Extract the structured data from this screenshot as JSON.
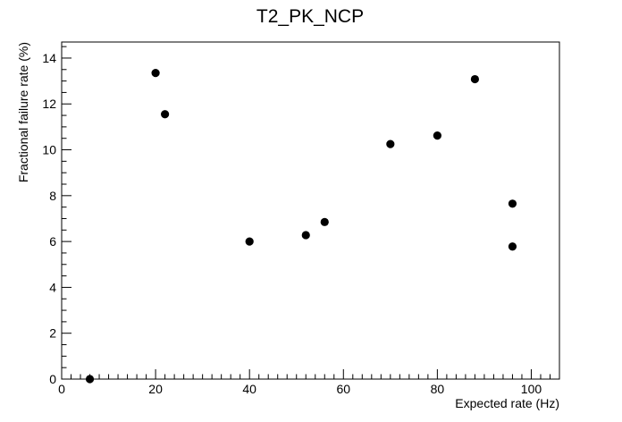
{
  "chart_data": {
    "type": "scatter",
    "title": "T2_PK_NCP",
    "xlabel": "Expected rate (Hz)",
    "ylabel": "Fractional failure rate (%)",
    "xlim": [
      0,
      106
    ],
    "ylim": [
      0,
      14.7
    ],
    "x_major_ticks": [
      0,
      20,
      40,
      60,
      80,
      100
    ],
    "y_major_ticks": [
      0,
      2,
      4,
      6,
      8,
      10,
      12,
      14
    ],
    "x_minor_step": 2,
    "y_minor_step": 0.5,
    "grid": false,
    "legend": "none",
    "marker_color": "#000000",
    "points": [
      {
        "x": 6,
        "y": 0.0
      },
      {
        "x": 20,
        "y": 13.35
      },
      {
        "x": 22,
        "y": 11.55
      },
      {
        "x": 40,
        "y": 6.0
      },
      {
        "x": 52,
        "y": 6.28
      },
      {
        "x": 56,
        "y": 6.85
      },
      {
        "x": 70,
        "y": 10.25
      },
      {
        "x": 80,
        "y": 10.62
      },
      {
        "x": 88,
        "y": 13.08
      },
      {
        "x": 96,
        "y": 7.65
      },
      {
        "x": 96,
        "y": 5.78
      }
    ]
  }
}
